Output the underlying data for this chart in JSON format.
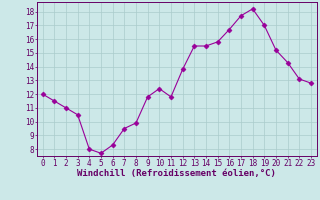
{
  "x": [
    0,
    1,
    2,
    3,
    4,
    5,
    6,
    7,
    8,
    9,
    10,
    11,
    12,
    13,
    14,
    15,
    16,
    17,
    18,
    19,
    20,
    21,
    22,
    23
  ],
  "y": [
    12,
    11.5,
    11,
    10.5,
    8,
    7.7,
    8.3,
    9.5,
    9.9,
    11.8,
    12.4,
    11.8,
    13.8,
    15.5,
    15.5,
    15.8,
    16.7,
    17.7,
    18.2,
    17,
    15.2,
    14.3,
    13.1,
    12.8
  ],
  "line_color": "#990099",
  "marker": "D",
  "marker_size": 2.5,
  "bg_color": "#cce8e8",
  "grid_color": "#aacccc",
  "xlabel": "Windchill (Refroidissement éolien,°C)",
  "xlabel_color": "#660066",
  "tick_color": "#660066",
  "ylim": [
    7.5,
    18.7
  ],
  "xlim": [
    -0.5,
    23.5
  ],
  "yticks": [
    8,
    9,
    10,
    11,
    12,
    13,
    14,
    15,
    16,
    17,
    18
  ],
  "xticks": [
    0,
    1,
    2,
    3,
    4,
    5,
    6,
    7,
    8,
    9,
    10,
    11,
    12,
    13,
    14,
    15,
    16,
    17,
    18,
    19,
    20,
    21,
    22,
    23
  ],
  "tick_fontsize": 5.5,
  "xlabel_fontsize": 6.5,
  "spine_color": "#660066",
  "line_width": 0.8
}
